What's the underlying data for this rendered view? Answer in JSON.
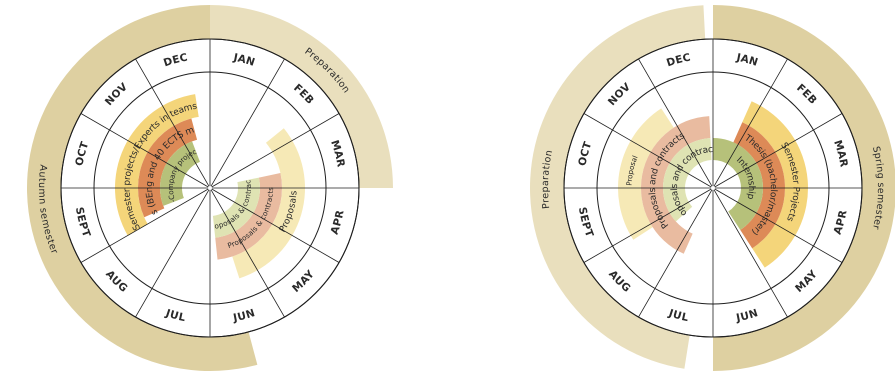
{
  "colors": {
    "outer_band": "#e9dfbd",
    "outer_band_dark": "#ded0a1",
    "yellow": "#f4d57a",
    "pale_yellow": "#f6e9b6",
    "orange": "#dd8a57",
    "salmon": "#e9bba0",
    "green": "#b6c17a",
    "pale_green": "#dfe3b3",
    "lines": "#1f1f1f",
    "ring_bg": "#ffffff"
  },
  "months": [
    "JAN",
    "FEB",
    "MAR",
    "APR",
    "MAY",
    "JUN",
    "JUL",
    "AUG",
    "SEPT",
    "OCT",
    "NOV",
    "DEC"
  ],
  "wheels": [
    {
      "id": "left",
      "bands": [
        {
          "label": "Preparation",
          "color": "outer_band",
          "from_month": 0,
          "to_month": 3
        },
        {
          "label": "Autumn semester",
          "color": "outer_band_dark",
          "from_month": 5.5,
          "to_month": 12
        }
      ],
      "arcs": [
        {
          "label": "Semester projects/Experts in teams",
          "color": "yellow",
          "from_month": 8,
          "to_month": 11.7,
          "ring": 3
        },
        {
          "label": "Thesis (BEng and 40 ECTS master)",
          "color": "orange",
          "from_month": 8.2,
          "to_month": 11.5,
          "ring": 2
        },
        {
          "label": "In-Company projects",
          "color": "green",
          "from_month": 8.3,
          "to_month": 11.3,
          "ring": 1
        },
        {
          "label": "Proposals",
          "color": "pale_yellow",
          "from_month": 1.7,
          "to_month": 5.4,
          "ring": 3
        },
        {
          "label": "Proposals & contracts",
          "color": "salmon",
          "from_month": 2.6,
          "to_month": 5.8,
          "ring": 2
        },
        {
          "label": "Proposals & contracts",
          "color": "pale_green",
          "from_month": 2.6,
          "to_month": 5.8,
          "ring": 1
        }
      ]
    },
    {
      "id": "right",
      "bands": [
        {
          "label": "Spring semester",
          "color": "outer_band_dark",
          "from_month": 0,
          "to_month": 6
        },
        {
          "label": "Preparation",
          "color": "outer_band",
          "from_month": 6.3,
          "to_month": 11.9
        }
      ],
      "arcs": [
        {
          "label": "Proposal",
          "color": "pale_yellow",
          "from_month": 7.9,
          "to_month": 10.9,
          "ring": 3
        },
        {
          "label": "Proposals and contracts",
          "color": "salmon",
          "from_month": 6.8,
          "to_month": 11.9,
          "ring": 2
        },
        {
          "label": "Proposals and contracts",
          "color": "pale_green",
          "from_month": 7.6,
          "to_month": 11.9,
          "ring": 1
        },
        {
          "label": "Semester Projects",
          "color": "yellow",
          "from_month": 0.8,
          "to_month": 4.9,
          "ring": 3
        },
        {
          "label": "Thesis (bachelor/master)",
          "color": "orange",
          "from_month": 0.8,
          "to_month": 4.9,
          "ring": 2
        },
        {
          "label": "Internship",
          "color": "green",
          "from_month": 0,
          "to_month": 4.9,
          "ring": 1
        }
      ]
    }
  ]
}
